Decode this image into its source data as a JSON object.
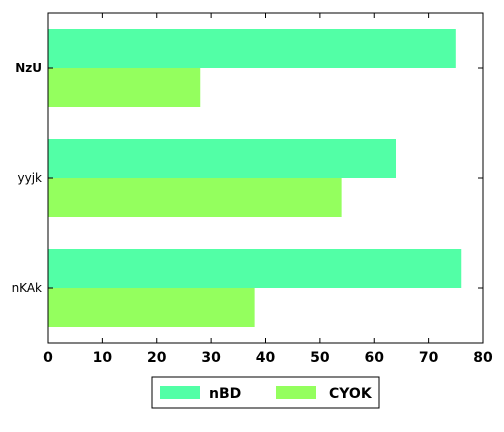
{
  "chart_data": {
    "type": "bar",
    "orientation": "horizontal",
    "categories": [
      "NzU",
      "yyjk",
      "nKAk"
    ],
    "series": [
      {
        "name": "nBD",
        "values": [
          75,
          64,
          76
        ],
        "color": "#52ffa6"
      },
      {
        "name": "CYOK",
        "values": [
          28,
          54,
          38
        ],
        "color": "#94ff5e"
      }
    ],
    "xlim": [
      0,
      80
    ],
    "xticks": [
      "0",
      "10",
      "20",
      "30",
      "40",
      "50",
      "60",
      "70",
      "80"
    ],
    "grid": false,
    "legend_position": "bottom-center"
  }
}
